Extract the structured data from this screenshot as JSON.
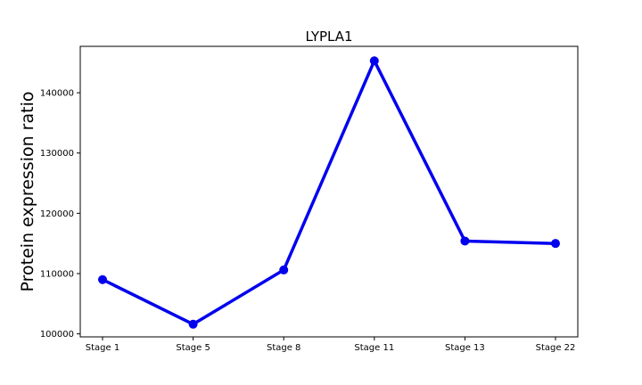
{
  "chart_data": {
    "type": "line",
    "title": "LYPLA1",
    "xlabel": "",
    "ylabel": "Protein expression ratio",
    "categories": [
      "Stage 1",
      "Stage 5",
      "Stage 8",
      "Stage 11",
      "Stage 13",
      "Stage 22"
    ],
    "series": [
      {
        "values": [
          109000,
          101600,
          110600,
          145300,
          115400,
          115000
        ]
      }
    ],
    "yticks": [
      100000,
      110000,
      120000,
      130000,
      140000
    ],
    "ytick_labels": [
      "100000",
      "110000",
      "120000",
      "130000",
      "140000"
    ],
    "ylim": [
      99500,
      147700
    ],
    "grid": false,
    "legend": "none",
    "colors": {
      "line": "#0000ee",
      "axes": "#000000",
      "background": "#ffffff"
    }
  }
}
